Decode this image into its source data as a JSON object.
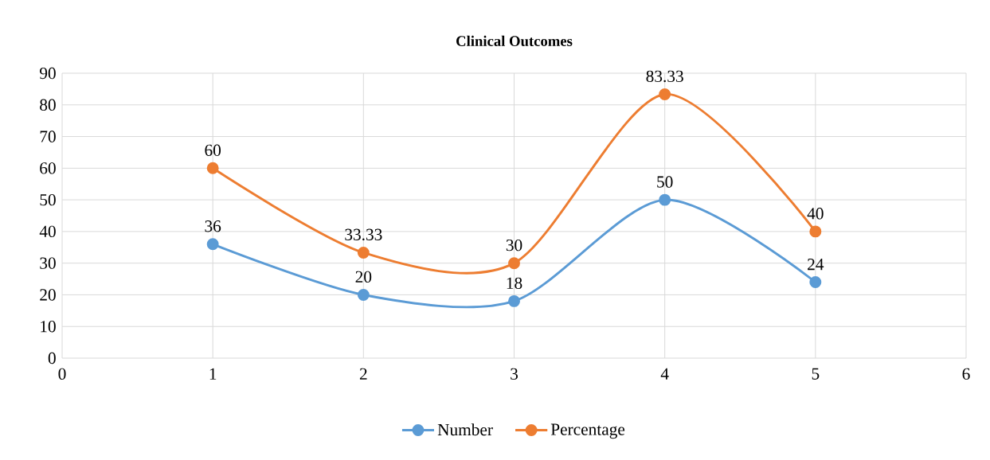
{
  "chart_data": {
    "type": "line",
    "title": "Clinical Outcomes",
    "x": [
      1,
      2,
      3,
      4,
      5
    ],
    "series": [
      {
        "name": "Number",
        "color": "#5b9bd5",
        "values": [
          36,
          20,
          18,
          50,
          24
        ]
      },
      {
        "name": "Percentage",
        "color": "#ed7d31",
        "values": [
          60,
          33.33,
          30,
          83.33,
          40
        ]
      }
    ],
    "xlim": [
      0,
      6
    ],
    "xticks": [
      0,
      1,
      2,
      3,
      4,
      5,
      6
    ],
    "ylim": [
      0,
      90
    ],
    "yticks": [
      0,
      10,
      20,
      30,
      40,
      50,
      60,
      70,
      80,
      90
    ],
    "grid": true,
    "legend": "bottom",
    "marker": "circle",
    "line_style": "solid",
    "data_labels": true
  }
}
